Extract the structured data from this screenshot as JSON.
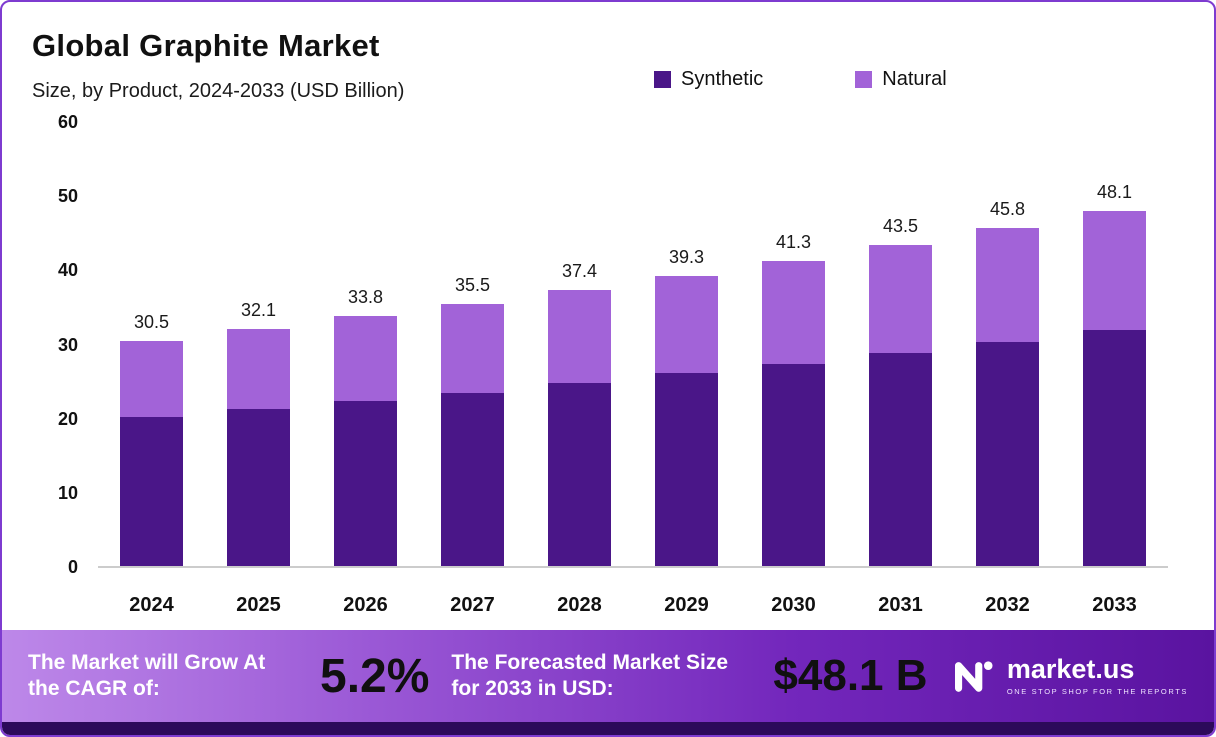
{
  "header": {
    "title": "Global Graphite Market",
    "subtitle": "Size, by Product, 2024-2033 (USD Billion)"
  },
  "legend": [
    {
      "label": "Synthetic",
      "color": "#4a1688"
    },
    {
      "label": "Natural",
      "color": "#a263d8"
    }
  ],
  "chart_data": {
    "type": "bar",
    "stacked": true,
    "title": "Global Graphite Market",
    "subtitle": "Size, by Product, 2024-2033 (USD Billion)",
    "ylabel": "USD Billion",
    "ylim": [
      0,
      60
    ],
    "yticks": [
      0,
      10,
      20,
      30,
      40,
      50,
      60
    ],
    "grid": false,
    "legend_position": "top-right",
    "categories": [
      "2024",
      "2025",
      "2026",
      "2027",
      "2028",
      "2029",
      "2030",
      "2031",
      "2032",
      "2033"
    ],
    "series": [
      {
        "name": "Synthetic",
        "color": "#4a1688",
        "values": [
          20.2,
          21.2,
          22.4,
          23.5,
          24.8,
          26.1,
          27.4,
          28.9,
          30.4,
          32.0
        ]
      },
      {
        "name": "Natural",
        "color": "#a263d8",
        "values": [
          10.3,
          10.9,
          11.4,
          12.0,
          12.6,
          13.2,
          13.9,
          14.6,
          15.4,
          16.1
        ]
      }
    ],
    "totals": [
      30.5,
      32.1,
      33.8,
      35.5,
      37.4,
      39.3,
      41.3,
      43.5,
      45.8,
      48.1
    ]
  },
  "banner": {
    "cagr_label": "The Market will Grow At the CAGR of:",
    "cagr_value": "5.2%",
    "forecast_label": "The Forecasted Market Size for 2033 in USD:",
    "forecast_value": "$48.1 B",
    "brand": "market.us",
    "brand_tagline": "ONE STOP SHOP FOR THE REPORTS"
  }
}
